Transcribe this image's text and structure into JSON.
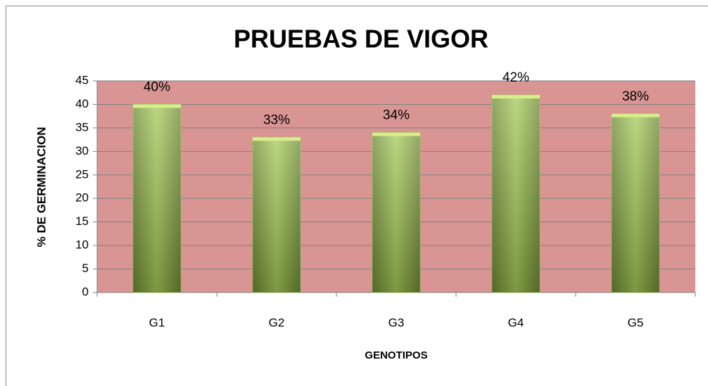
{
  "chart_data": {
    "type": "bar",
    "title": "PRUEBAS DE VIGOR",
    "x_label": "GENOTIPOS",
    "y_label": "% DE GERMINACION",
    "categories": [
      "G1",
      "G2",
      "G3",
      "G4",
      "G5"
    ],
    "values": [
      40,
      33,
      34,
      42,
      38
    ],
    "value_labels": [
      "40%",
      "33%",
      "34%",
      "42%",
      "38%"
    ],
    "color": "#9bbb59",
    "ylim": [
      0,
      45
    ],
    "yticks": [
      0,
      5,
      10,
      15,
      20,
      25,
      30,
      35,
      40,
      45
    ],
    "grid": true
  }
}
